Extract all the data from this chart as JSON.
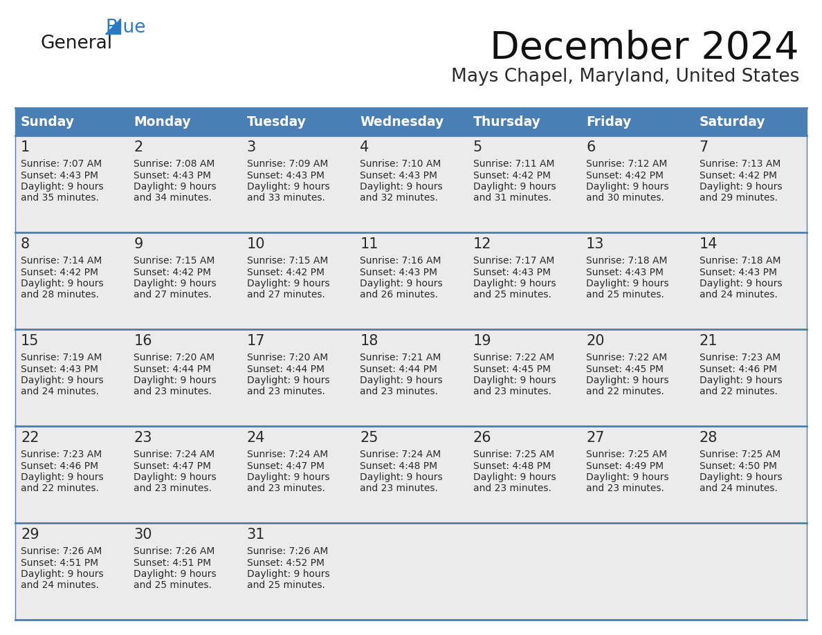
{
  "title": "December 2024",
  "subtitle": "Mays Chapel, Maryland, United States",
  "days_of_week": [
    "Sunday",
    "Monday",
    "Tuesday",
    "Wednesday",
    "Thursday",
    "Friday",
    "Saturday"
  ],
  "header_bg": "#4a7fb5",
  "header_text": "#ffffff",
  "cell_bg": "#ebebeb",
  "border_color": "#4a7fb5",
  "text_color": "#2a2a2a",
  "calendar_data": [
    [
      {
        "day": 1,
        "sunrise": "7:07 AM",
        "sunset": "4:43 PM",
        "daylight_h": "9 hours",
        "daylight_m": "and 35 minutes."
      },
      {
        "day": 2,
        "sunrise": "7:08 AM",
        "sunset": "4:43 PM",
        "daylight_h": "9 hours",
        "daylight_m": "and 34 minutes."
      },
      {
        "day": 3,
        "sunrise": "7:09 AM",
        "sunset": "4:43 PM",
        "daylight_h": "9 hours",
        "daylight_m": "and 33 minutes."
      },
      {
        "day": 4,
        "sunrise": "7:10 AM",
        "sunset": "4:43 PM",
        "daylight_h": "9 hours",
        "daylight_m": "and 32 minutes."
      },
      {
        "day": 5,
        "sunrise": "7:11 AM",
        "sunset": "4:42 PM",
        "daylight_h": "9 hours",
        "daylight_m": "and 31 minutes."
      },
      {
        "day": 6,
        "sunrise": "7:12 AM",
        "sunset": "4:42 PM",
        "daylight_h": "9 hours",
        "daylight_m": "and 30 minutes."
      },
      {
        "day": 7,
        "sunrise": "7:13 AM",
        "sunset": "4:42 PM",
        "daylight_h": "9 hours",
        "daylight_m": "and 29 minutes."
      }
    ],
    [
      {
        "day": 8,
        "sunrise": "7:14 AM",
        "sunset": "4:42 PM",
        "daylight_h": "9 hours",
        "daylight_m": "and 28 minutes."
      },
      {
        "day": 9,
        "sunrise": "7:15 AM",
        "sunset": "4:42 PM",
        "daylight_h": "9 hours",
        "daylight_m": "and 27 minutes."
      },
      {
        "day": 10,
        "sunrise": "7:15 AM",
        "sunset": "4:42 PM",
        "daylight_h": "9 hours",
        "daylight_m": "and 27 minutes."
      },
      {
        "day": 11,
        "sunrise": "7:16 AM",
        "sunset": "4:43 PM",
        "daylight_h": "9 hours",
        "daylight_m": "and 26 minutes."
      },
      {
        "day": 12,
        "sunrise": "7:17 AM",
        "sunset": "4:43 PM",
        "daylight_h": "9 hours",
        "daylight_m": "and 25 minutes."
      },
      {
        "day": 13,
        "sunrise": "7:18 AM",
        "sunset": "4:43 PM",
        "daylight_h": "9 hours",
        "daylight_m": "and 25 minutes."
      },
      {
        "day": 14,
        "sunrise": "7:18 AM",
        "sunset": "4:43 PM",
        "daylight_h": "9 hours",
        "daylight_m": "and 24 minutes."
      }
    ],
    [
      {
        "day": 15,
        "sunrise": "7:19 AM",
        "sunset": "4:43 PM",
        "daylight_h": "9 hours",
        "daylight_m": "and 24 minutes."
      },
      {
        "day": 16,
        "sunrise": "7:20 AM",
        "sunset": "4:44 PM",
        "daylight_h": "9 hours",
        "daylight_m": "and 23 minutes."
      },
      {
        "day": 17,
        "sunrise": "7:20 AM",
        "sunset": "4:44 PM",
        "daylight_h": "9 hours",
        "daylight_m": "and 23 minutes."
      },
      {
        "day": 18,
        "sunrise": "7:21 AM",
        "sunset": "4:44 PM",
        "daylight_h": "9 hours",
        "daylight_m": "and 23 minutes."
      },
      {
        "day": 19,
        "sunrise": "7:22 AM",
        "sunset": "4:45 PM",
        "daylight_h": "9 hours",
        "daylight_m": "and 23 minutes."
      },
      {
        "day": 20,
        "sunrise": "7:22 AM",
        "sunset": "4:45 PM",
        "daylight_h": "9 hours",
        "daylight_m": "and 22 minutes."
      },
      {
        "day": 21,
        "sunrise": "7:23 AM",
        "sunset": "4:46 PM",
        "daylight_h": "9 hours",
        "daylight_m": "and 22 minutes."
      }
    ],
    [
      {
        "day": 22,
        "sunrise": "7:23 AM",
        "sunset": "4:46 PM",
        "daylight_h": "9 hours",
        "daylight_m": "and 22 minutes."
      },
      {
        "day": 23,
        "sunrise": "7:24 AM",
        "sunset": "4:47 PM",
        "daylight_h": "9 hours",
        "daylight_m": "and 23 minutes."
      },
      {
        "day": 24,
        "sunrise": "7:24 AM",
        "sunset": "4:47 PM",
        "daylight_h": "9 hours",
        "daylight_m": "and 23 minutes."
      },
      {
        "day": 25,
        "sunrise": "7:24 AM",
        "sunset": "4:48 PM",
        "daylight_h": "9 hours",
        "daylight_m": "and 23 minutes."
      },
      {
        "day": 26,
        "sunrise": "7:25 AM",
        "sunset": "4:48 PM",
        "daylight_h": "9 hours",
        "daylight_m": "and 23 minutes."
      },
      {
        "day": 27,
        "sunrise": "7:25 AM",
        "sunset": "4:49 PM",
        "daylight_h": "9 hours",
        "daylight_m": "and 23 minutes."
      },
      {
        "day": 28,
        "sunrise": "7:25 AM",
        "sunset": "4:50 PM",
        "daylight_h": "9 hours",
        "daylight_m": "and 24 minutes."
      }
    ],
    [
      {
        "day": 29,
        "sunrise": "7:26 AM",
        "sunset": "4:51 PM",
        "daylight_h": "9 hours",
        "daylight_m": "and 24 minutes."
      },
      {
        "day": 30,
        "sunrise": "7:26 AM",
        "sunset": "4:51 PM",
        "daylight_h": "9 hours",
        "daylight_m": "and 25 minutes."
      },
      {
        "day": 31,
        "sunrise": "7:26 AM",
        "sunset": "4:52 PM",
        "daylight_h": "9 hours",
        "daylight_m": "and 25 minutes."
      },
      null,
      null,
      null,
      null
    ]
  ],
  "logo_color_general": "#1a1a1a",
  "logo_color_blue": "#2979c5",
  "logo_triangle_color": "#2979c5"
}
